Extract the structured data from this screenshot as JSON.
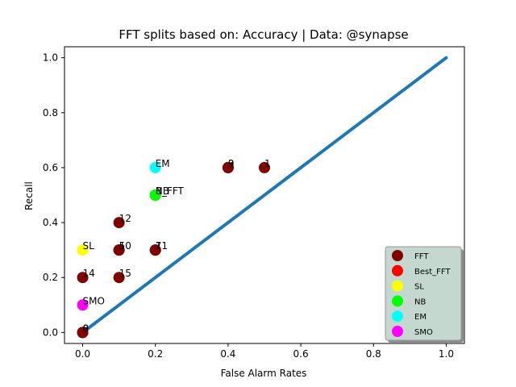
{
  "chart_data": {
    "type": "scatter",
    "title": "FFT splits based on: Accuracy  |  Data: @synapse",
    "xlabel": "False Alarm Rates",
    "ylabel": "Recall",
    "xlim": [
      -0.05,
      1.05
    ],
    "ylim": [
      -0.04,
      1.04
    ],
    "xticks": [
      0.0,
      0.2,
      0.4,
      0.6,
      0.8,
      1.0
    ],
    "yticks": [
      0.0,
      0.2,
      0.4,
      0.6,
      0.8,
      1.0
    ],
    "xtick_labels": [
      "0.0",
      "0.2",
      "0.4",
      "0.6",
      "0.8",
      "1.0"
    ],
    "ytick_labels": [
      "0.0",
      "0.2",
      "0.4",
      "0.6",
      "0.8",
      "1.0"
    ],
    "grid": false,
    "legend_position": "bottom-right",
    "diagonal": {
      "x": [
        0,
        1
      ],
      "y": [
        0,
        1
      ],
      "color": "#1f77b4"
    },
    "series": [
      {
        "name": "FFT",
        "color": "#800000",
        "points": [
          {
            "x": 0.0,
            "y": 0.0,
            "label": "8"
          },
          {
            "x": 0.0,
            "y": 0.0,
            "label": "0"
          },
          {
            "x": 0.0,
            "y": 0.2,
            "label": "14"
          },
          {
            "x": 0.1,
            "y": 0.2,
            "label": "15"
          },
          {
            "x": 0.1,
            "y": 0.3,
            "label": "5"
          },
          {
            "x": 0.1,
            "y": 0.3,
            "label": "10"
          },
          {
            "x": 0.1,
            "y": 0.4,
            "label": "12"
          },
          {
            "x": 0.2,
            "y": 0.3,
            "label": "7"
          },
          {
            "x": 0.2,
            "y": 0.3,
            "label": "11"
          },
          {
            "x": 0.4,
            "y": 0.6,
            "label": "3"
          },
          {
            "x": 0.4,
            "y": 0.6,
            "label": "9"
          },
          {
            "x": 0.5,
            "y": 0.6,
            "label": "1"
          }
        ]
      },
      {
        "name": "Best_FFT",
        "color": "#ff0000",
        "points": [
          {
            "x": 0.2,
            "y": 0.5,
            "label": "B_FFT"
          }
        ]
      },
      {
        "name": "SL",
        "color": "#ffff00",
        "points": [
          {
            "x": 0.0,
            "y": 0.3,
            "label": "SL"
          }
        ]
      },
      {
        "name": "NB",
        "color": "#00ff00",
        "points": [
          {
            "x": 0.2,
            "y": 0.5,
            "label": "NB"
          }
        ]
      },
      {
        "name": "EM",
        "color": "#00ffff",
        "points": [
          {
            "x": 0.2,
            "y": 0.6,
            "label": "EM"
          }
        ]
      },
      {
        "name": "SMO",
        "color": "#ff00ff",
        "points": [
          {
            "x": 0.0,
            "y": 0.1,
            "label": "SMO"
          }
        ]
      }
    ]
  }
}
